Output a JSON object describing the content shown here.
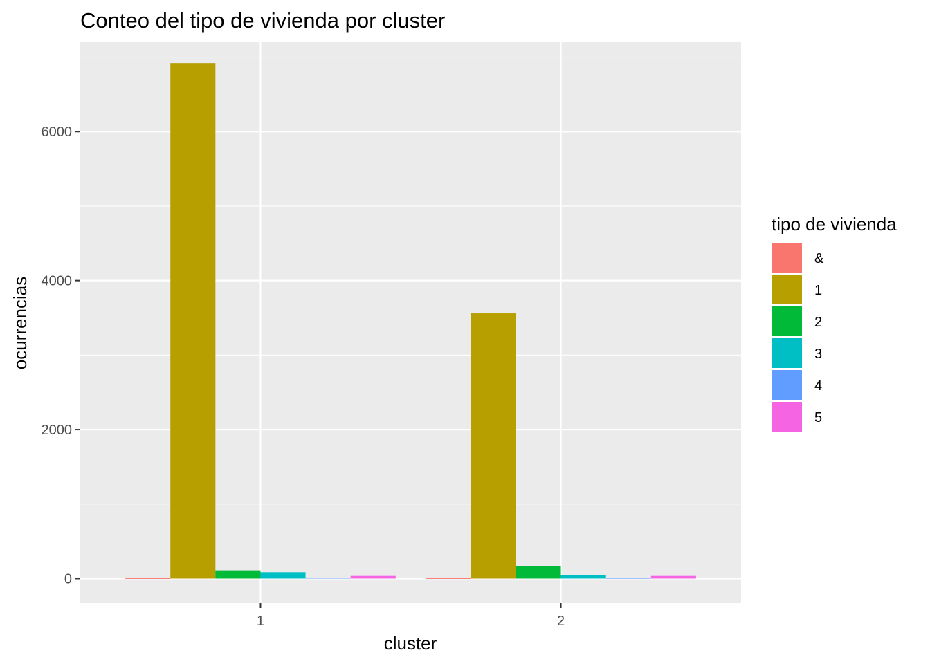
{
  "chart_data": {
    "type": "bar",
    "title": "Conteo del tipo de vivienda por cluster",
    "xlabel": "cluster",
    "ylabel": "ocurrencias",
    "categories": [
      "1",
      "2"
    ],
    "ylim": [
      -330,
      7200
    ],
    "yticks": [
      0,
      2000,
      4000,
      6000
    ],
    "ytick_labels": [
      "0",
      "2000",
      "4000",
      "6000"
    ],
    "grid": true,
    "legend": {
      "title": "tipo de vivienda",
      "position": "right"
    },
    "series": [
      {
        "name": "&",
        "color": "#F8766D",
        "values": [
          5,
          5
        ]
      },
      {
        "name": "1",
        "color": "#B79F00",
        "values": [
          6920,
          3560
        ]
      },
      {
        "name": "2",
        "color": "#00BA38",
        "values": [
          110,
          165
        ]
      },
      {
        "name": "3",
        "color": "#00BFC4",
        "values": [
          85,
          45
        ]
      },
      {
        "name": "4",
        "color": "#619CFF",
        "values": [
          10,
          8
        ]
      },
      {
        "name": "5",
        "color": "#F564E3",
        "values": [
          35,
          35
        ]
      }
    ]
  }
}
